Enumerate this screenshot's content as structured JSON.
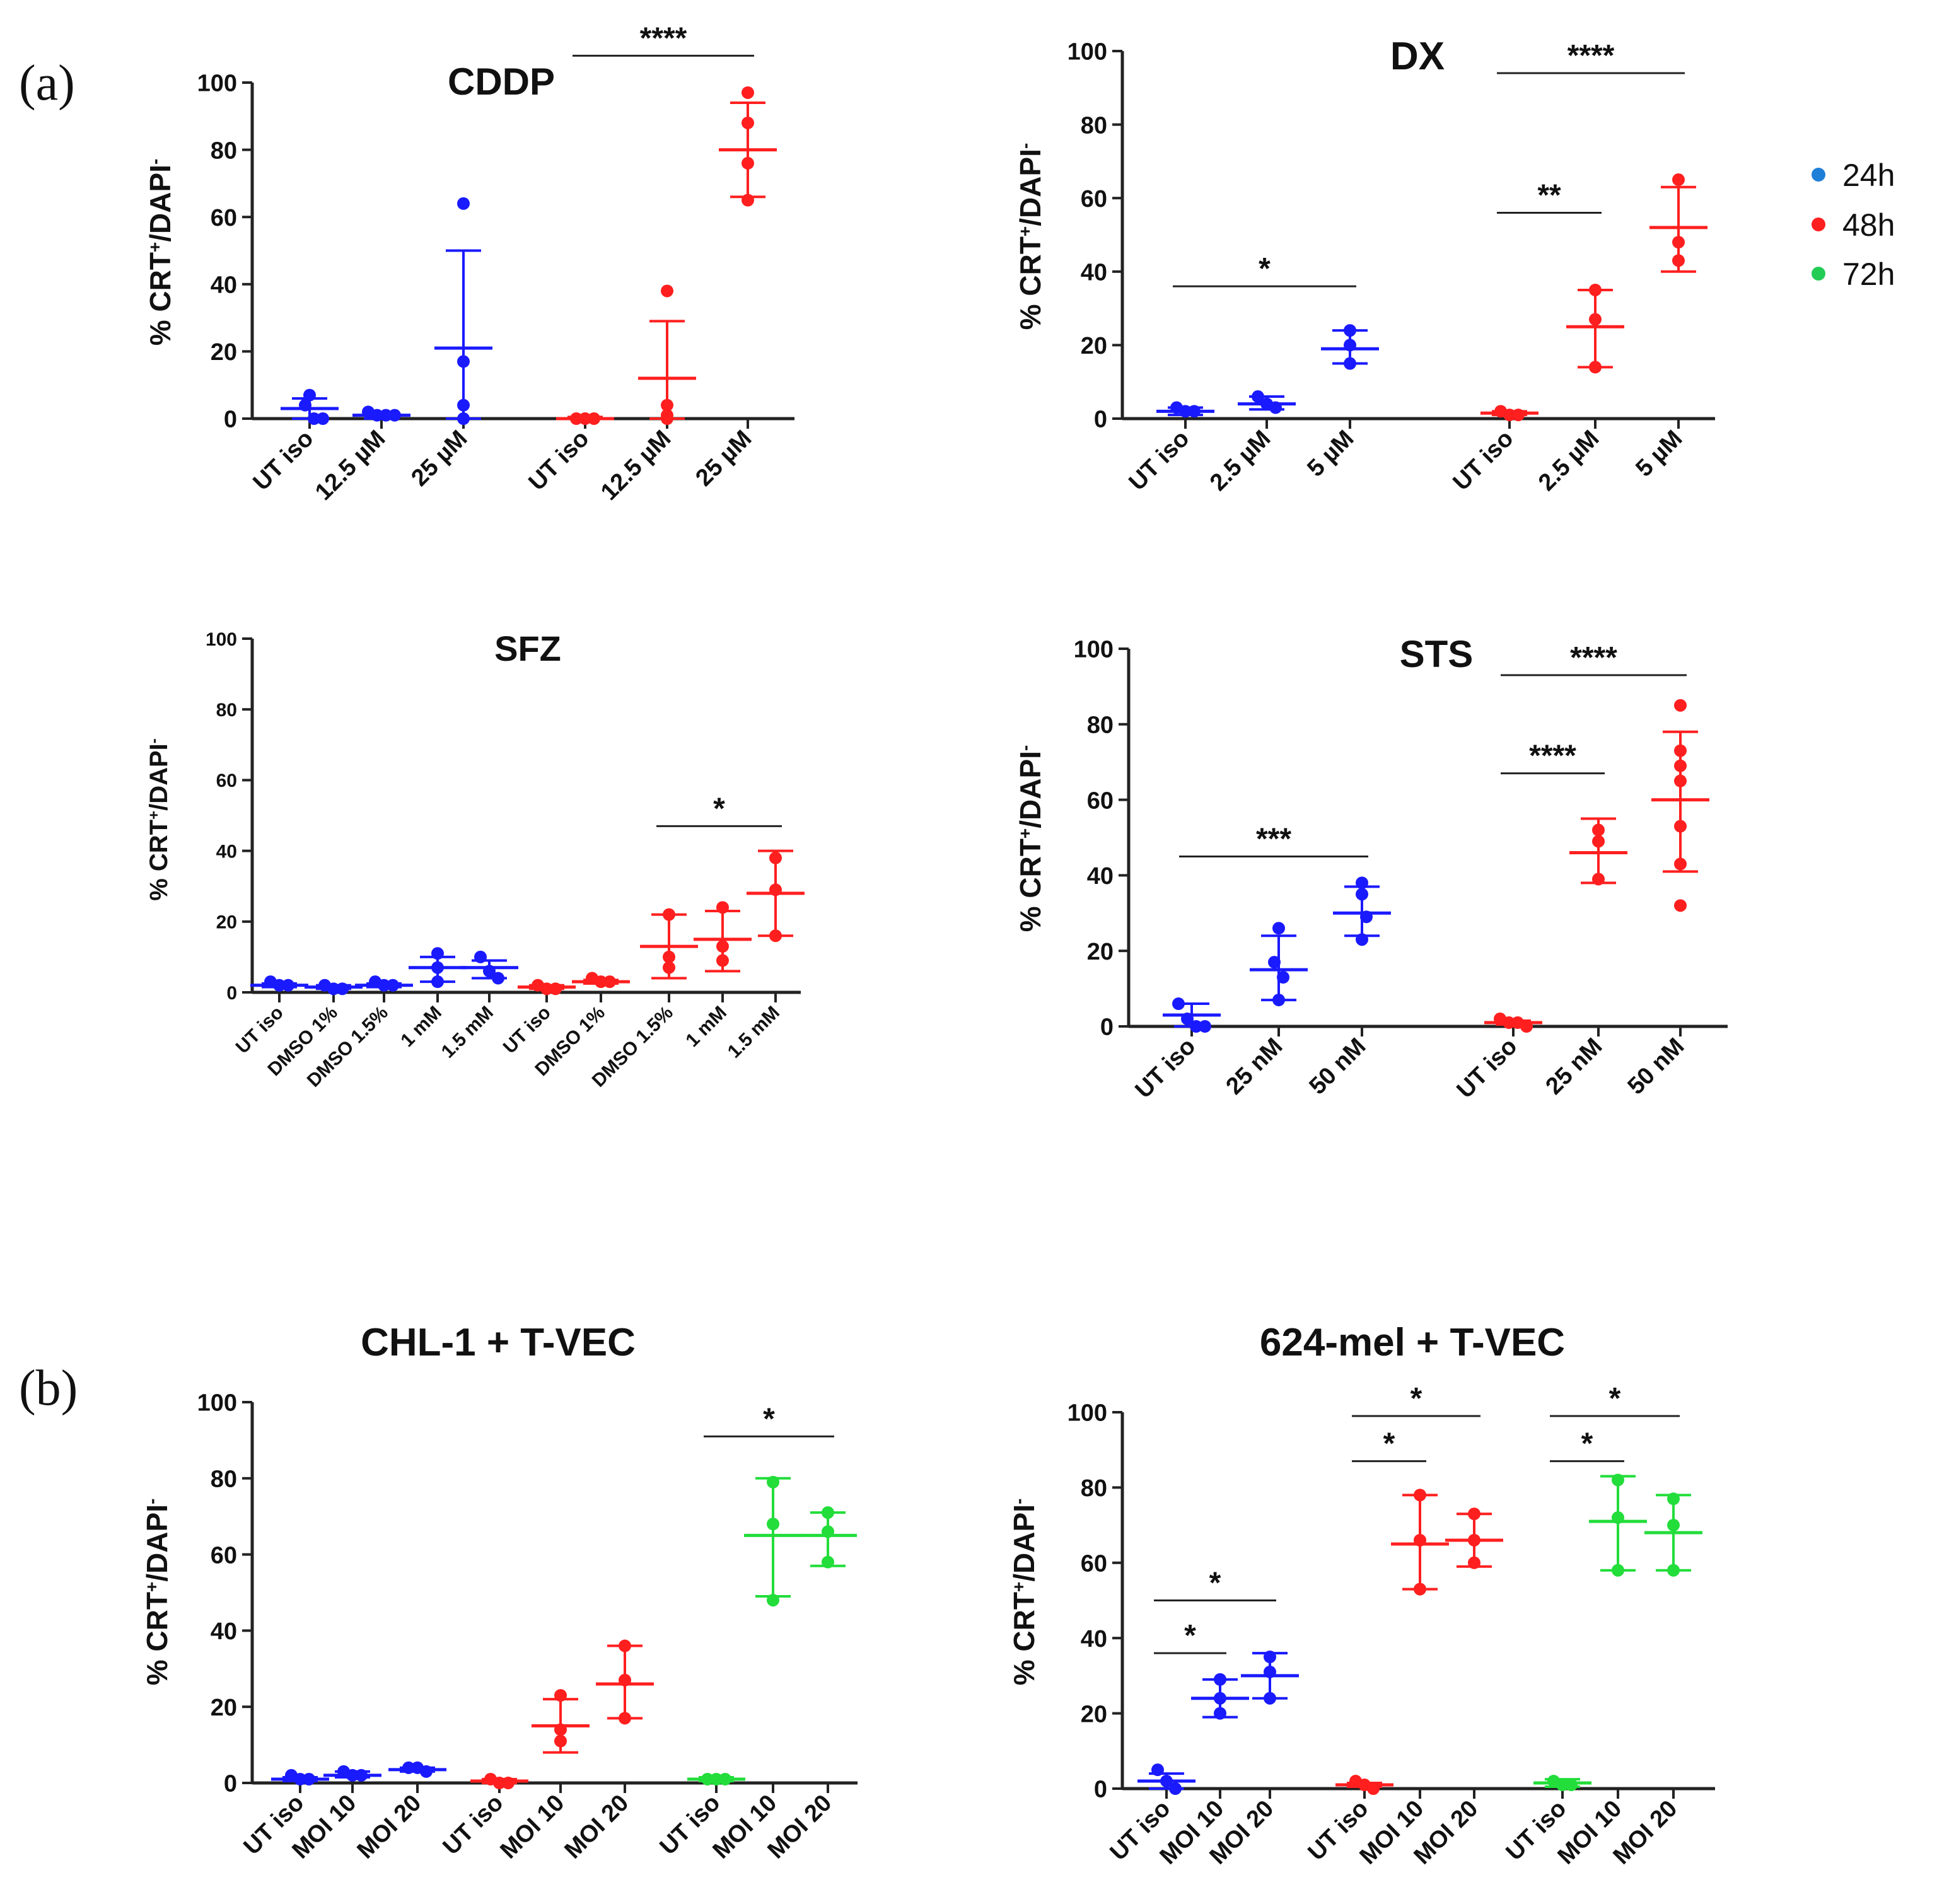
{
  "figure": {
    "panel_labels": [
      "(a)",
      "(b)"
    ],
    "colors": {
      "24h": "#1a1aff",
      "48h": "#ff1f1f",
      "72h": "#22dd3a",
      "legend_24h": "#1e7fd8",
      "legend_48h": "#ff1f1f",
      "legend_72h": "#22cc55"
    },
    "legend": [
      {
        "label": "24h",
        "color_key": "legend_24h"
      },
      {
        "label": "48h",
        "color_key": "legend_48h"
      },
      {
        "label": "72h",
        "color_key": "legend_72h"
      }
    ]
  },
  "chart_data": [
    {
      "id": "cddp",
      "type": "scatter",
      "title": "CDDP",
      "ylabel": "% CRT+/DAPI-",
      "ylim": [
        0,
        100
      ],
      "yticks": [
        0,
        20,
        40,
        60,
        80,
        100
      ],
      "categories": [
        "UT iso",
        "12.5 µM",
        "25 µM",
        "UT iso",
        "12.5 µM",
        "25 µM"
      ],
      "groups": [
        {
          "time": "24h",
          "mean": 3,
          "sd_low": 0,
          "sd_high": 6,
          "points": [
            7,
            4,
            0,
            0
          ]
        },
        {
          "time": "24h",
          "mean": 1,
          "sd_low": 0,
          "sd_high": 2,
          "points": [
            2,
            1,
            1,
            1
          ]
        },
        {
          "time": "24h",
          "mean": 21,
          "sd_low": 0,
          "sd_high": 50,
          "points": [
            64,
            17,
            4,
            0
          ]
        },
        {
          "time": "48h",
          "mean": 0,
          "sd_low": 0,
          "sd_high": 0.5,
          "points": [
            0,
            0,
            0
          ]
        },
        {
          "time": "48h",
          "mean": 12,
          "sd_low": 0,
          "sd_high": 29,
          "points": [
            38,
            4,
            1,
            0
          ]
        },
        {
          "time": "48h",
          "mean": 80,
          "sd_low": 66,
          "sd_high": 94,
          "points": [
            97,
            88,
            76,
            65
          ]
        }
      ],
      "significance": [
        {
          "from": 3,
          "to": 5,
          "y": 108,
          "label": "****"
        }
      ]
    },
    {
      "id": "dx",
      "type": "scatter",
      "title": "DX",
      "ylabel": "% CRT+/DAPI-",
      "ylim": [
        0,
        100
      ],
      "yticks": [
        0,
        20,
        40,
        60,
        80,
        100
      ],
      "categories": [
        "UT iso",
        "2.5 µM",
        "5 µM",
        "UT iso",
        "2.5 µM",
        "5 µM"
      ],
      "groups": [
        {
          "time": "24h",
          "mean": 2,
          "sd_low": 1,
          "sd_high": 3,
          "points": [
            3,
            2,
            2
          ]
        },
        {
          "time": "24h",
          "mean": 4,
          "sd_low": 2.5,
          "sd_high": 6,
          "points": [
            6,
            4,
            3
          ]
        },
        {
          "time": "24h",
          "mean": 19,
          "sd_low": 15,
          "sd_high": 24,
          "points": [
            24,
            20,
            15
          ]
        },
        {
          "time": "48h",
          "mean": 1.5,
          "sd_low": 1,
          "sd_high": 2,
          "points": [
            2,
            1,
            1
          ]
        },
        {
          "time": "48h",
          "mean": 25,
          "sd_low": 14,
          "sd_high": 35,
          "points": [
            35,
            27,
            14
          ]
        },
        {
          "time": "48h",
          "mean": 52,
          "sd_low": 40,
          "sd_high": 63,
          "points": [
            65,
            48,
            43
          ]
        }
      ],
      "significance": [
        {
          "from": 0,
          "to": 2,
          "y": 36,
          "label": "*"
        },
        {
          "from": 3,
          "to": 4,
          "y": 56,
          "label": "**"
        },
        {
          "from": 3,
          "to": 5,
          "y": 94,
          "label": "****"
        }
      ]
    },
    {
      "id": "sfz",
      "type": "scatter",
      "title": "SFZ",
      "ylabel": "% CRT+/DAPI-",
      "ylim": [
        0,
        100
      ],
      "yticks": [
        0,
        20,
        40,
        60,
        80,
        100
      ],
      "categories": [
        "UT iso",
        "DMSO 1%",
        "DMSO 1.5%",
        "1 mM",
        "1.5 mM",
        "UT iso",
        "DMSO 1%",
        "DMSO 1.5%",
        "1 mM",
        "1.5 mM"
      ],
      "groups": [
        {
          "time": "24h",
          "mean": 2,
          "sd_low": 1.5,
          "sd_high": 2.5,
          "points": [
            3,
            2,
            2
          ]
        },
        {
          "time": "24h",
          "mean": 1.5,
          "sd_low": 1,
          "sd_high": 2,
          "points": [
            2,
            1,
            1
          ]
        },
        {
          "time": "24h",
          "mean": 2,
          "sd_low": 1.5,
          "sd_high": 2.5,
          "points": [
            3,
            2,
            2
          ]
        },
        {
          "time": "24h",
          "mean": 7,
          "sd_low": 3,
          "sd_high": 10,
          "points": [
            11,
            7,
            3
          ]
        },
        {
          "time": "24h",
          "mean": 7,
          "sd_low": 4,
          "sd_high": 9,
          "points": [
            10,
            6,
            4
          ]
        },
        {
          "time": "48h",
          "mean": 1.5,
          "sd_low": 1,
          "sd_high": 2,
          "points": [
            2,
            1,
            1
          ]
        },
        {
          "time": "48h",
          "mean": 3,
          "sd_low": 2.5,
          "sd_high": 3.5,
          "points": [
            4,
            3,
            3
          ]
        },
        {
          "time": "48h",
          "mean": 13,
          "sd_low": 4,
          "sd_high": 22,
          "points": [
            22,
            10,
            7
          ]
        },
        {
          "time": "48h",
          "mean": 15,
          "sd_low": 6,
          "sd_high": 23,
          "points": [
            24,
            13,
            9
          ]
        },
        {
          "time": "48h",
          "mean": 28,
          "sd_low": 16,
          "sd_high": 40,
          "points": [
            38,
            29,
            16
          ]
        }
      ],
      "significance": [
        {
          "from": 7,
          "to": 9,
          "y": 47,
          "label": "*"
        }
      ]
    },
    {
      "id": "sts",
      "type": "scatter",
      "title": "STS",
      "ylabel": "% CRT+/DAPI-",
      "ylim": [
        0,
        100
      ],
      "yticks": [
        0,
        20,
        40,
        60,
        80,
        100
      ],
      "categories": [
        "UT iso",
        "25 nM",
        "50 nM",
        "UT iso",
        "25 nM",
        "50 nM"
      ],
      "groups": [
        {
          "time": "24h",
          "mean": 3,
          "sd_low": 0,
          "sd_high": 6,
          "points": [
            6,
            2,
            0,
            0
          ]
        },
        {
          "time": "24h",
          "mean": 15,
          "sd_low": 7,
          "sd_high": 24,
          "points": [
            26,
            17,
            13,
            7
          ]
        },
        {
          "time": "24h",
          "mean": 30,
          "sd_low": 24,
          "sd_high": 37,
          "points": [
            38,
            35,
            29,
            23
          ]
        },
        {
          "time": "48h",
          "mean": 1,
          "sd_low": 0.5,
          "sd_high": 1.5,
          "points": [
            2,
            1,
            1,
            0
          ]
        },
        {
          "time": "48h",
          "mean": 46,
          "sd_low": 38,
          "sd_high": 55,
          "points": [
            52,
            49,
            39
          ]
        },
        {
          "time": "48h",
          "mean": 60,
          "sd_low": 41,
          "sd_high": 78,
          "points": [
            85,
            73,
            69,
            65,
            53,
            43,
            32
          ]
        }
      ],
      "significance": [
        {
          "from": 0,
          "to": 2,
          "y": 45,
          "label": "***"
        },
        {
          "from": 3,
          "to": 4,
          "y": 67,
          "label": "****"
        },
        {
          "from": 3,
          "to": 5,
          "y": 93,
          "label": "****"
        }
      ]
    },
    {
      "id": "chl1",
      "type": "scatter",
      "title": "CHL-1 + T-VEC",
      "ylabel": "% CRT+/DAPI-",
      "ylim": [
        0,
        100
      ],
      "yticks": [
        0,
        20,
        40,
        60,
        80,
        100
      ],
      "categories": [
        "UT iso",
        "MOI 10",
        "MOI 20",
        "UT iso",
        "MOI 10",
        "MOI 20",
        "UT iso",
        "MOI 10",
        "MOI 20"
      ],
      "groups": [
        {
          "time": "24h",
          "mean": 1,
          "sd_low": 0.5,
          "sd_high": 1.5,
          "points": [
            2,
            1,
            1
          ]
        },
        {
          "time": "24h",
          "mean": 2,
          "sd_low": 1.5,
          "sd_high": 3,
          "points": [
            3,
            2,
            2
          ]
        },
        {
          "time": "24h",
          "mean": 3.5,
          "sd_low": 3,
          "sd_high": 4,
          "points": [
            4,
            4,
            3
          ]
        },
        {
          "time": "48h",
          "mean": 0.5,
          "sd_low": 0,
          "sd_high": 1,
          "points": [
            1,
            0,
            0
          ]
        },
        {
          "time": "48h",
          "mean": 15,
          "sd_low": 8,
          "sd_high": 22,
          "points": [
            23,
            14,
            11
          ]
        },
        {
          "time": "48h",
          "mean": 26,
          "sd_low": 17,
          "sd_high": 36,
          "points": [
            36,
            27,
            17
          ]
        },
        {
          "time": "72h",
          "mean": 1,
          "sd_low": 0.5,
          "sd_high": 1.5,
          "points": [
            1,
            1,
            1
          ]
        },
        {
          "time": "72h",
          "mean": 65,
          "sd_low": 49,
          "sd_high": 80,
          "points": [
            79,
            68,
            48
          ]
        },
        {
          "time": "72h",
          "mean": 65,
          "sd_low": 57,
          "sd_high": 71,
          "points": [
            71,
            66,
            58
          ]
        }
      ],
      "significance": [
        {
          "from": 6,
          "to": 8,
          "y": 91,
          "label": "*"
        }
      ]
    },
    {
      "id": "mel624",
      "type": "scatter",
      "title": "624-mel + T-VEC",
      "ylabel": "% CRT+/DAPI-",
      "ylim": [
        0,
        100
      ],
      "yticks": [
        0,
        20,
        40,
        60,
        80,
        100
      ],
      "categories": [
        "UT iso",
        "MOI 10",
        "MOI 20",
        "UT iso",
        "MOI 10",
        "MOI 20",
        "UT iso",
        "MOI 10",
        "MOI 20"
      ],
      "groups": [
        {
          "time": "24h",
          "mean": 2,
          "sd_low": 0,
          "sd_high": 4,
          "points": [
            5,
            2,
            0
          ]
        },
        {
          "time": "24h",
          "mean": 24,
          "sd_low": 19,
          "sd_high": 29,
          "points": [
            29,
            24,
            20
          ]
        },
        {
          "time": "24h",
          "mean": 30,
          "sd_low": 24,
          "sd_high": 36,
          "points": [
            35,
            31,
            24
          ]
        },
        {
          "time": "48h",
          "mean": 1,
          "sd_low": 0.5,
          "sd_high": 1.5,
          "points": [
            2,
            1,
            0
          ]
        },
        {
          "time": "48h",
          "mean": 65,
          "sd_low": 53,
          "sd_high": 78,
          "points": [
            78,
            66,
            53
          ]
        },
        {
          "time": "48h",
          "mean": 66,
          "sd_low": 59,
          "sd_high": 73,
          "points": [
            73,
            66,
            60
          ]
        },
        {
          "time": "72h",
          "mean": 1.5,
          "sd_low": 0.5,
          "sd_high": 2.5,
          "points": [
            2,
            1,
            1
          ]
        },
        {
          "time": "72h",
          "mean": 71,
          "sd_low": 58,
          "sd_high": 83,
          "points": [
            82,
            72,
            58
          ]
        },
        {
          "time": "72h",
          "mean": 68,
          "sd_low": 58,
          "sd_high": 78,
          "points": [
            77,
            70,
            58
          ]
        }
      ],
      "significance": [
        {
          "from": 0,
          "to": 1,
          "y": 36,
          "label": "*"
        },
        {
          "from": 0,
          "to": 2,
          "y": 50,
          "label": "*"
        },
        {
          "from": 3,
          "to": 4,
          "y": 87,
          "label": "*"
        },
        {
          "from": 3,
          "to": 5,
          "y": 99,
          "label": "*"
        },
        {
          "from": 6,
          "to": 7,
          "y": 87,
          "label": "*"
        },
        {
          "from": 6,
          "to": 8,
          "y": 99,
          "label": "*"
        }
      ]
    }
  ]
}
